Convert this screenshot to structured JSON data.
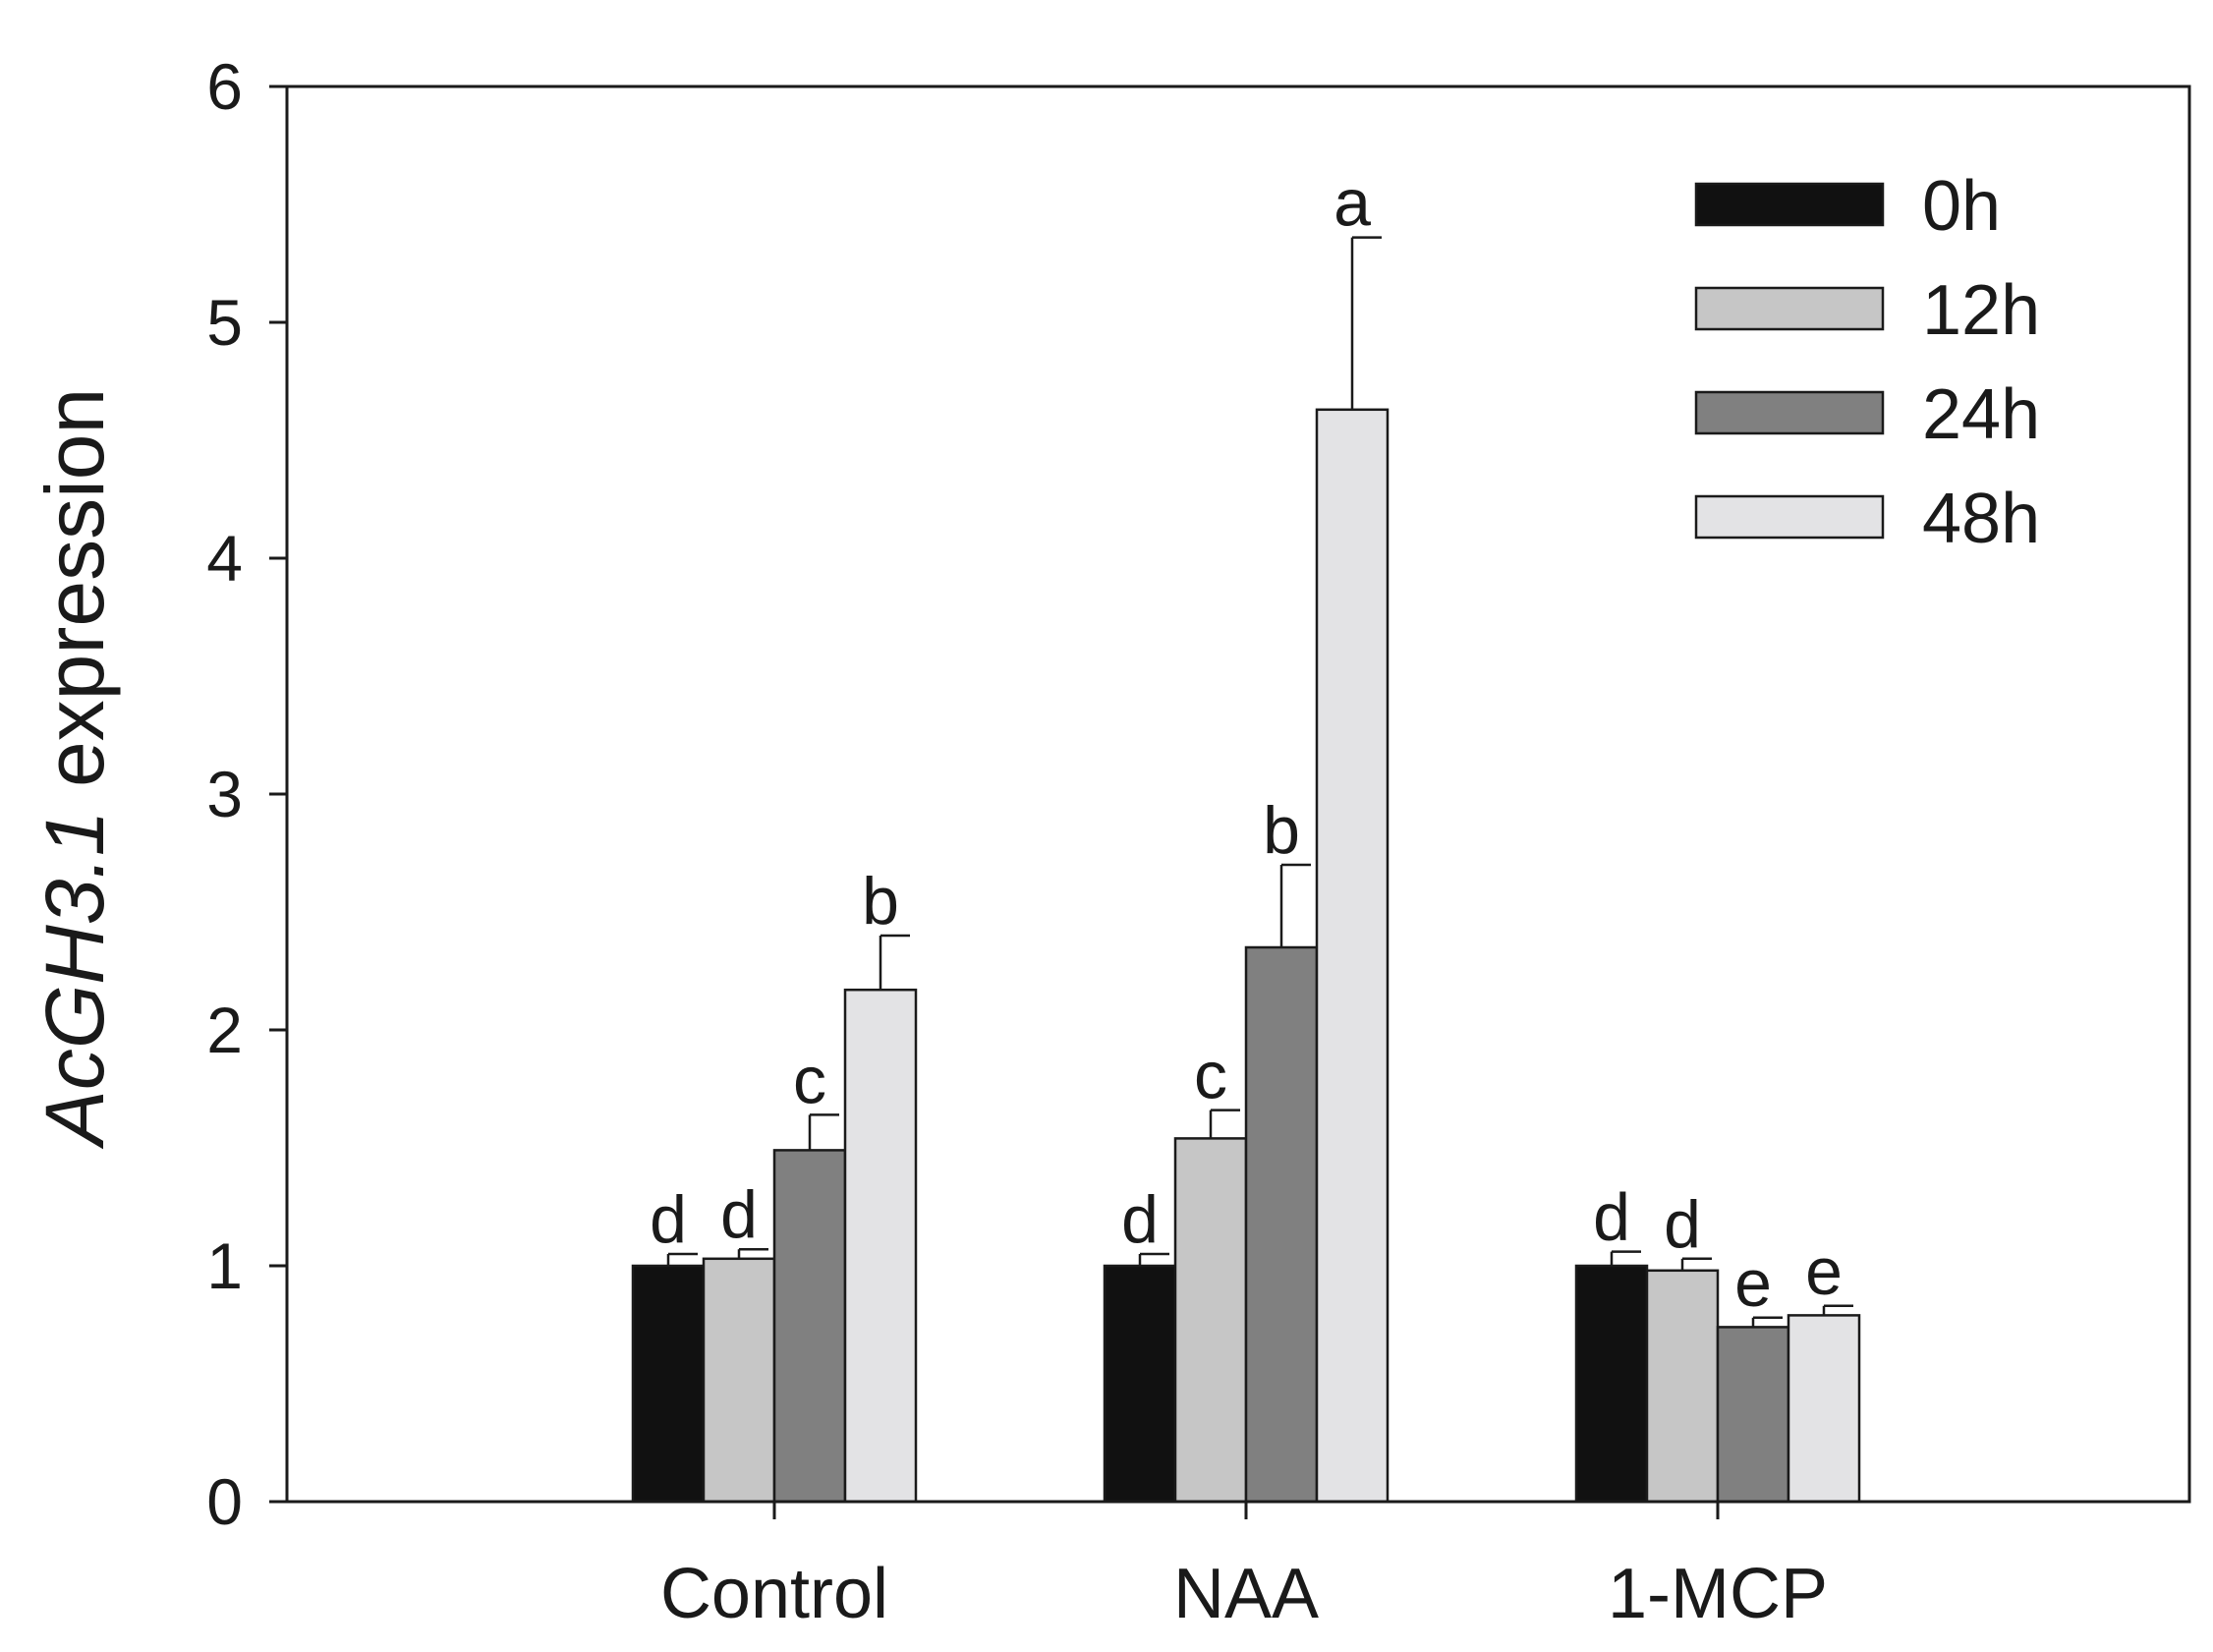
{
  "chart_data": {
    "type": "bar",
    "ylabel_italic": "AcGH3.1",
    "ylabel_rest": " expression",
    "xlabel": "",
    "ylim": [
      0,
      6
    ],
    "yticks": [
      "0",
      "1",
      "2",
      "3",
      "4",
      "5",
      "6"
    ],
    "categories": [
      "Control",
      "NAA",
      "1-MCP"
    ],
    "series": [
      {
        "name": "0h",
        "color": "#111111",
        "values": [
          1.0,
          1.0,
          1.0
        ],
        "errors": [
          0.05,
          0.05,
          0.06
        ],
        "letters": [
          "d",
          "d",
          "d"
        ]
      },
      {
        "name": "12h",
        "color": "#c6c6c6",
        "values": [
          1.03,
          1.54,
          0.98
        ],
        "errors": [
          0.04,
          0.12,
          0.05
        ],
        "letters": [
          "d",
          "c",
          "d"
        ]
      },
      {
        "name": "24h",
        "color": "#808080",
        "values": [
          1.49,
          2.35,
          0.74
        ],
        "errors": [
          0.15,
          0.35,
          0.04
        ],
        "letters": [
          "c",
          "b",
          "e"
        ]
      },
      {
        "name": "48h",
        "color": "#e3e3e5",
        "values": [
          2.17,
          4.63,
          0.79
        ],
        "errors": [
          0.23,
          0.73,
          0.04
        ],
        "letters": [
          "b",
          "a",
          "e"
        ]
      }
    ],
    "legend_position": "top-right",
    "grid": false
  }
}
